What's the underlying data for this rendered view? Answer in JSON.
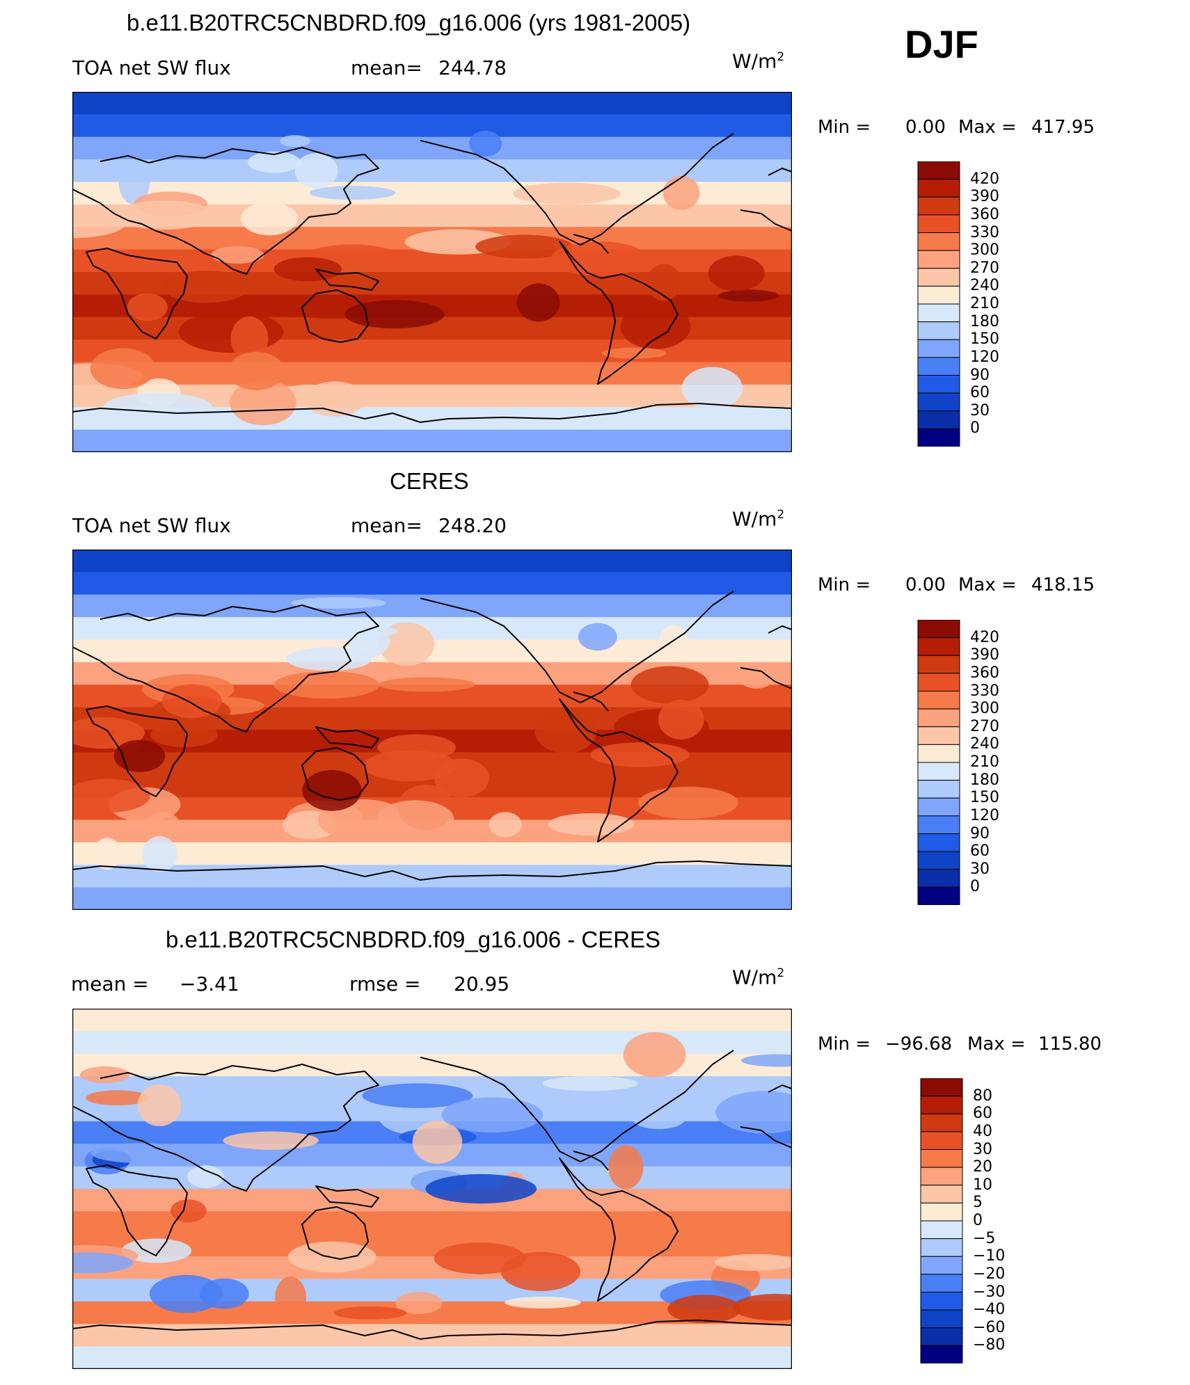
{
  "season": "DJF",
  "palettes": {
    "abs": [
      "#000080",
      "#0a2fa8",
      "#0f44c8",
      "#1f5be6",
      "#4a7ff5",
      "#7fa6fa",
      "#aecbfb",
      "#d6e8fa",
      "#fdebd6",
      "#fcc6a8",
      "#fca27e",
      "#f67a4a",
      "#e85126",
      "#cf3a10",
      "#b51e04",
      "#8a0c04"
    ],
    "diff": [
      "#000080",
      "#0a2fa8",
      "#0f44c8",
      "#1f5be6",
      "#4a7ff5",
      "#7fa6fa",
      "#aecbfb",
      "#d6e8fa",
      "#fdebd6",
      "#fcc6a8",
      "#fca27e",
      "#f67a4a",
      "#e85126",
      "#cf3a10",
      "#b51e04",
      "#8a0c04"
    ]
  },
  "panels": [
    {
      "title": "b.e11.B20TRC5CNBDRD.f09_g16.006 (yrs 1981-2005)",
      "left_label": "TOA net SW flux",
      "stat_label": "mean=",
      "stat_value": "244.78",
      "units": "W/m",
      "units_sup": "2",
      "min_label": "Min =",
      "min_value": "0.00",
      "max_label": "Max =",
      "max_value": "417.95",
      "colorbar_levels": [
        "420",
        "390",
        "360",
        "330",
        "300",
        "270",
        "240",
        "210",
        "180",
        "150",
        "120",
        "90",
        "60",
        "30",
        "0"
      ]
    },
    {
      "title": "CERES",
      "left_label": "TOA net SW flux",
      "stat_label": "mean=",
      "stat_value": "248.20",
      "units": "W/m",
      "units_sup": "2",
      "min_label": "Min =",
      "min_value": "0.00",
      "max_label": "Max =",
      "max_value": "418.15",
      "colorbar_levels": [
        "420",
        "390",
        "360",
        "330",
        "300",
        "270",
        "240",
        "210",
        "180",
        "150",
        "120",
        "90",
        "60",
        "30",
        "0"
      ]
    },
    {
      "title": "b.e11.B20TRC5CNBDRD.f09_g16.006 - CERES",
      "left_label": "mean =",
      "left_value": "−3.41",
      "stat_label": "rmse =",
      "stat_value": "20.95",
      "units": "W/m",
      "units_sup": "2",
      "min_label": "Min =",
      "min_value": "−96.68",
      "max_label": "Max =",
      "max_value": "115.80",
      "colorbar_levels": [
        "80",
        "60",
        "40",
        "30",
        "20",
        "10",
        "5",
        "0",
        "−5",
        "−10",
        "−20",
        "−30",
        "−40",
        "−60",
        "−80"
      ]
    }
  ],
  "chart_data": [
    {
      "type": "heatmap",
      "title": "b.e11.B20TRC5CNBDRD.f09_g16.006 (yrs 1981-2005)",
      "variable": "TOA net SW flux",
      "units": "W/m2",
      "mean": 244.78,
      "min": 0.0,
      "max": 417.95,
      "zonal_profile_top_to_bottom": [
        40,
        80,
        135,
        175,
        215,
        265,
        315,
        355,
        385,
        395,
        380,
        350,
        300,
        245,
        190,
        140
      ],
      "contour_levels": [
        0,
        30,
        60,
        90,
        120,
        150,
        180,
        210,
        240,
        270,
        300,
        330,
        360,
        390,
        420
      ]
    },
    {
      "type": "heatmap",
      "title": "CERES",
      "variable": "TOA net SW flux",
      "units": "W/m2",
      "mean": 248.2,
      "min": 0.0,
      "max": 418.15,
      "zonal_profile_top_to_bottom": [
        40,
        80,
        135,
        185,
        230,
        290,
        345,
        375,
        390,
        385,
        370,
        330,
        270,
        215,
        165,
        125
      ],
      "contour_levels": [
        0,
        30,
        60,
        90,
        120,
        150,
        180,
        210,
        240,
        270,
        300,
        330,
        360,
        390,
        420
      ]
    },
    {
      "type": "heatmap",
      "title": "b.e11.B20TRC5CNBDRD.f09_g16.006 - CERES",
      "variable": "difference",
      "units": "W/m2",
      "mean": -3.41,
      "rmse": 20.95,
      "min": -96.68,
      "max": 115.8,
      "zonal_profile_top_to_bottom": [
        3,
        -3,
        4,
        -6,
        -10,
        -22,
        -14,
        -8,
        12,
        22,
        28,
        14,
        -6,
        24,
        6,
        -2
      ],
      "contour_levels": [
        -80,
        -60,
        -40,
        -30,
        -20,
        -10,
        -5,
        0,
        5,
        10,
        20,
        30,
        40,
        60,
        80
      ]
    }
  ]
}
